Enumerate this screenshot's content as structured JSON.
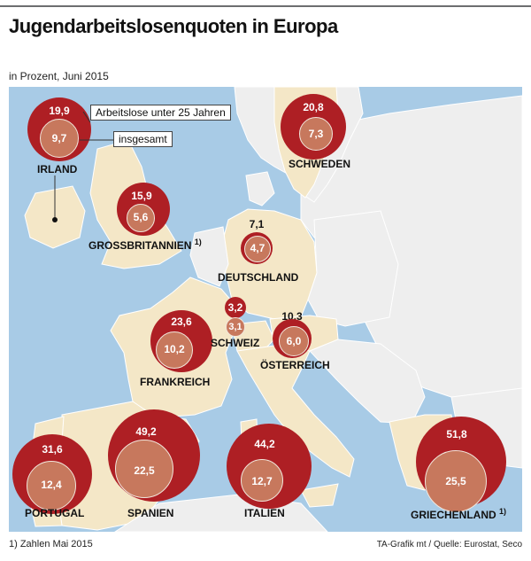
{
  "title": "Jugendarbeitslosenquoten in Europa",
  "subtitle": "in Prozent, Juni 2015",
  "legend": {
    "outer_label": "Arbeitslose unter 25 Jahren",
    "inner_label": "insgesamt"
  },
  "colors": {
    "sea": "#a8cbe6",
    "land_highlight": "#f4e7c7",
    "land_other": "#eeeeee",
    "youth_circle": "#ae1f24",
    "total_circle": "#c7785d"
  },
  "countries": [
    {
      "id": "irland",
      "name": "IRLAND",
      "youth": "19,9",
      "total": "9,7"
    },
    {
      "id": "schweden",
      "name": "SCHWEDEN",
      "youth": "20,8",
      "total": "7,3"
    },
    {
      "id": "grossbritannien",
      "name": "GROSSBRITANNIEN",
      "footnote": "1)",
      "youth": "15,9",
      "total": "5,6"
    },
    {
      "id": "deutschland",
      "name": "DEUTSCHLAND",
      "youth": "7,1",
      "total": "4,7"
    },
    {
      "id": "frankreich",
      "name": "FRANKREICH",
      "youth": "23,6",
      "total": "10,2"
    },
    {
      "id": "schweiz",
      "name": "SCHWEIZ",
      "youth": "3,2",
      "total": "3,1"
    },
    {
      "id": "oesterreich",
      "name": "ÖSTERREICH",
      "youth": "10,3",
      "total": "6,0"
    },
    {
      "id": "portugal",
      "name": "PORTUGAL",
      "youth": "31,6",
      "total": "12,4"
    },
    {
      "id": "spanien",
      "name": "SPANIEN",
      "youth": "49,2",
      "total": "22,5"
    },
    {
      "id": "italien",
      "name": "ITALIEN",
      "youth": "44,2",
      "total": "12,7"
    },
    {
      "id": "griechenland",
      "name": "GRIECHENLAND",
      "footnote": "1)",
      "youth": "51,8",
      "total": "25,5"
    }
  ],
  "footnote": "1) Zahlen Mai 2015",
  "source": "TA-Grafik mt / Quelle: Eurostat, Seco"
}
